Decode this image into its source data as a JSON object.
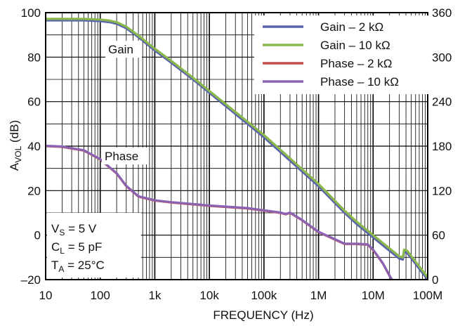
{
  "chart_data": {
    "type": "line",
    "x_scale": "log",
    "xlim": [
      10,
      100000000
    ],
    "ylim": [
      -20,
      100
    ],
    "y2lim": [
      0,
      360
    ],
    "grid": true,
    "legend_position": "top-right",
    "xlabel": "FREQUENCY (Hz)",
    "ylabel": {
      "main": "A",
      "sub": "VOL",
      "suffix": " (dB)"
    },
    "x_ticks": [
      {
        "value": 10,
        "label": "10"
      },
      {
        "value": 100,
        "label": "100"
      },
      {
        "value": 1000,
        "label": "1k"
      },
      {
        "value": 10000,
        "label": "10k"
      },
      {
        "value": 100000,
        "label": "100k"
      },
      {
        "value": 1000000,
        "label": "1M"
      },
      {
        "value": 10000000,
        "label": "10M"
      },
      {
        "value": 100000000,
        "label": "100M"
      }
    ],
    "y_ticks": [
      {
        "value": 100,
        "label": "100"
      },
      {
        "value": 80,
        "label": "80"
      },
      {
        "value": 60,
        "label": "60"
      },
      {
        "value": 40,
        "label": "40"
      },
      {
        "value": 20,
        "label": "20"
      },
      {
        "value": 0,
        "label": "0"
      },
      {
        "value": -20,
        "label": "–20"
      }
    ],
    "y2_ticks": [
      {
        "value": 360,
        "label": "360"
      },
      {
        "value": 300,
        "label": "300"
      },
      {
        "value": 240,
        "label": "240"
      },
      {
        "value": 180,
        "label": "180"
      },
      {
        "value": 120,
        "label": "120"
      },
      {
        "value": 60,
        "label": "60"
      },
      {
        "value": 0,
        "label": "0"
      }
    ],
    "annotations": {
      "gain": "Gain",
      "phase": "Phase"
    },
    "conditions": [
      {
        "main": "V",
        "sub": "S",
        "rest": " = 5 V"
      },
      {
        "main": "C",
        "sub": "L",
        "rest": " = 5 pF"
      },
      {
        "main": "T",
        "sub": "A",
        "rest": " = 25°C"
      }
    ],
    "series": [
      {
        "name": "Gain – 2 kΩ",
        "axis": "left",
        "color": "#5b64ad",
        "x": [
          10,
          50,
          100,
          150,
          200,
          300,
          500,
          1000,
          2000,
          5000,
          10000,
          100000,
          1000000,
          3000000,
          5000000,
          10000000,
          20000000,
          30000000,
          35000000,
          37000000,
          42000000,
          100000000
        ],
        "y": [
          96.5,
          96.5,
          96.2,
          95.7,
          95,
          93,
          89,
          83,
          77.5,
          70,
          64,
          44,
          22,
          10,
          5,
          -1,
          -7,
          -10.5,
          -11,
          -7.5,
          -8,
          -20
        ]
      },
      {
        "name": "Gain – 10 kΩ",
        "axis": "left",
        "color": "#8ab84a",
        "x": [
          10,
          50,
          100,
          150,
          200,
          300,
          500,
          1000,
          2000,
          5000,
          10000,
          100000,
          1000000,
          3000000,
          5000000,
          10000000,
          20000000,
          30000000,
          35000000,
          37000000,
          42000000,
          100000000
        ],
        "y": [
          97.2,
          97.2,
          96.9,
          96.4,
          95.7,
          93.7,
          89.7,
          83.8,
          78.3,
          70.8,
          64.8,
          45,
          23,
          11,
          6,
          0,
          -6,
          -9.5,
          -10,
          -6.5,
          -7,
          -19
        ]
      },
      {
        "name": "Phase – 2 kΩ",
        "axis": "right",
        "color": "#c44e4e",
        "x": [
          10,
          20,
          50,
          100,
          200,
          300,
          500,
          1000,
          2000,
          5000,
          10000,
          50000,
          100000,
          200000,
          250000,
          300000,
          500000,
          1000000,
          2000000,
          3000000,
          5000000,
          8000000,
          10000000,
          15000000,
          20000000,
          22000000
        ],
        "y": [
          180,
          179,
          174,
          162,
          143,
          126,
          112,
          106.5,
          104,
          101.5,
          99.5,
          96,
          93,
          90,
          88,
          90,
          80,
          64,
          54,
          48,
          48,
          47,
          40,
          22,
          5,
          0
        ]
      },
      {
        "name": "Phase – 10 kΩ",
        "axis": "right",
        "color": "#8a63b5",
        "x": [
          10,
          20,
          50,
          100,
          200,
          300,
          500,
          1000,
          2000,
          5000,
          10000,
          50000,
          100000,
          200000,
          250000,
          300000,
          500000,
          1000000,
          2000000,
          3000000,
          5000000,
          8000000,
          10000000,
          15000000,
          20000000,
          22000000
        ],
        "y": [
          180.5,
          179.5,
          174.5,
          162.5,
          143.5,
          126.5,
          112.5,
          107,
          104.5,
          102,
          100,
          96.5,
          93.5,
          90.5,
          88.5,
          90.5,
          80.5,
          64.5,
          54.5,
          48.5,
          48.5,
          47.5,
          40.5,
          22.5,
          5.5,
          0.5
        ]
      }
    ]
  }
}
